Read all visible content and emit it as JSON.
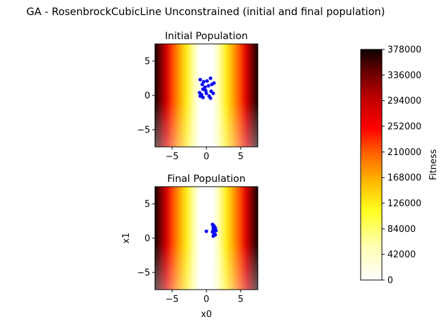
{
  "figure": {
    "suptitle": "GA - RosenbrockCubicLine Unconstrained (initial and final population)"
  },
  "chart_data": [
    {
      "type": "heatmap",
      "title": "Initial Population",
      "xlabel": "",
      "ylabel": "",
      "xlim": [
        -7.5,
        7.5
      ],
      "ylim": [
        -7.5,
        7.5
      ],
      "xticks": [
        -5,
        0,
        5
      ],
      "yticks": [
        -5,
        0,
        5
      ],
      "xtick_labels": [
        "−5",
        "0",
        "5"
      ],
      "ytick_labels": [
        "−5",
        "0",
        "5"
      ],
      "grid": false,
      "background": "Rosenbrock-style fitness landscape: light (low) valley around x0≈0, dark red at x0=±7.5",
      "scatter_color": "#0a0af0",
      "points": [
        [
          -0.9,
          2.3
        ],
        [
          -0.4,
          2.0
        ],
        [
          0.1,
          2.1
        ],
        [
          0.6,
          2.5
        ],
        [
          1.1,
          1.8
        ],
        [
          0.8,
          1.6
        ],
        [
          -0.6,
          1.6
        ],
        [
          -0.2,
          1.2
        ],
        [
          0.3,
          1.4
        ],
        [
          -0.5,
          0.9
        ],
        [
          -0.1,
          0.7
        ],
        [
          0.7,
          0.6
        ],
        [
          1.0,
          0.3
        ],
        [
          -1.0,
          0.4
        ],
        [
          -0.7,
          0.1
        ],
        [
          0.0,
          0.3
        ],
        [
          -0.5,
          -0.3
        ],
        [
          0.4,
          -0.1
        ],
        [
          0.6,
          -0.4
        ],
        [
          -0.9,
          -0.1
        ]
      ]
    },
    {
      "type": "heatmap",
      "title": "Final Population",
      "xlabel": "x0",
      "ylabel": "x1",
      "xlim": [
        -7.5,
        7.5
      ],
      "ylim": [
        -7.5,
        7.5
      ],
      "xticks": [
        -5,
        0,
        5
      ],
      "yticks": [
        -5,
        0,
        5
      ],
      "xtick_labels": [
        "−5",
        "0",
        "5"
      ],
      "ytick_labels": [
        "−5",
        "0",
        "5"
      ],
      "grid": false,
      "scatter_color": "#0a0af0",
      "points": [
        [
          0.0,
          1.0
        ],
        [
          0.9,
          2.0
        ],
        [
          1.1,
          1.8
        ],
        [
          1.3,
          1.5
        ],
        [
          1.0,
          1.2
        ],
        [
          1.2,
          1.0
        ],
        [
          0.9,
          0.9
        ],
        [
          1.1,
          0.7
        ],
        [
          1.3,
          0.5
        ],
        [
          1.0,
          0.3
        ],
        [
          1.2,
          1.3
        ],
        [
          1.0,
          1.6
        ],
        [
          1.4,
          1.1
        ],
        [
          1.1,
          0.4
        ]
      ]
    }
  ],
  "colorbar": {
    "label": "Fitness",
    "colormap": "hot_r",
    "range": [
      0,
      378000
    ],
    "ticks": [
      0,
      42000,
      84000,
      126000,
      168000,
      210000,
      252000,
      294000,
      336000,
      378000
    ],
    "tick_labels": [
      "0",
      "42000",
      "84000",
      "126000",
      "168000",
      "210000",
      "252000",
      "294000",
      "336000",
      "378000"
    ]
  }
}
